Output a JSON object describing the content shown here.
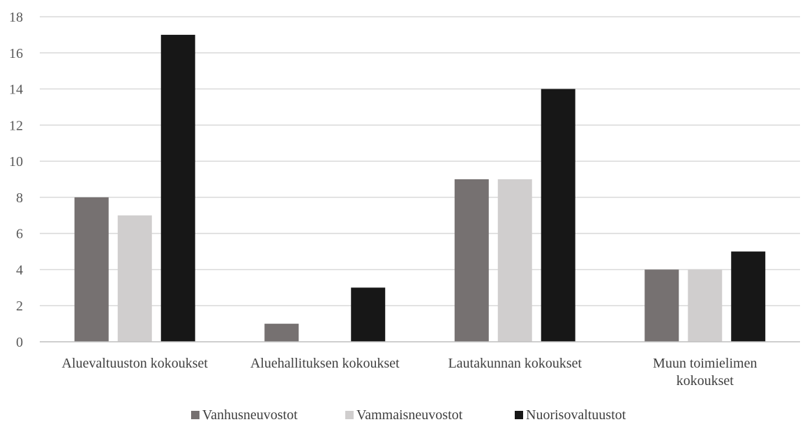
{
  "chart_data": {
    "type": "bar",
    "categories": [
      [
        "Aluevaltuuston kokoukset"
      ],
      [
        "Aluehallituksen kokoukset"
      ],
      [
        "Lautakunnan kokoukset"
      ],
      [
        "Muun toimielimen",
        "kokoukset"
      ]
    ],
    "series": [
      {
        "name": "Vanhusneuvostot",
        "color": "#767171",
        "values": [
          8,
          1,
          9,
          4
        ]
      },
      {
        "name": "Vammaisneuvostot",
        "color": "#d0cece",
        "values": [
          7,
          0,
          9,
          4
        ]
      },
      {
        "name": "Nuorisovaltuustot",
        "color": "#171717",
        "values": [
          17,
          3,
          14,
          5
        ]
      }
    ],
    "yticks": [
      "0",
      "2",
      "4",
      "6",
      "8",
      "10",
      "12",
      "14",
      "16",
      "18"
    ],
    "ylim": [
      0,
      18
    ],
    "grid": true,
    "legend_position": "bottom",
    "gridline_color": "#d9d9d9",
    "axis_color": "#bfbfbf"
  }
}
